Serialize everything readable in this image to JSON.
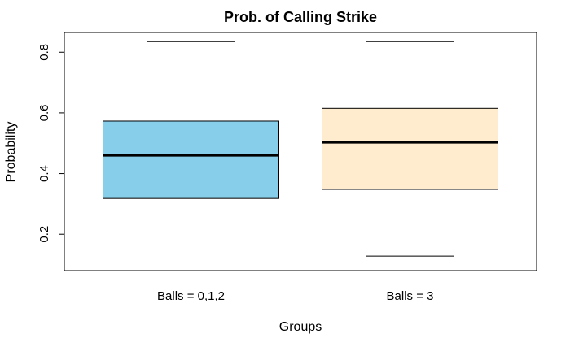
{
  "chart_data": {
    "type": "boxplot",
    "title": "Prob. of Calling Strike",
    "xlabel": "Groups",
    "ylabel": "Probability",
    "ylim": [
      0.08,
      0.865
    ],
    "yticks": [
      0.2,
      0.4,
      0.6,
      0.8
    ],
    "ytick_labels": [
      "0.2",
      "0.4",
      "0.6",
      "0.8"
    ],
    "categories": [
      "Balls = 0,1,2",
      "Balls = 3"
    ],
    "series": [
      {
        "min": 0.108,
        "q1": 0.318,
        "median": 0.46,
        "q3": 0.573,
        "max": 0.835,
        "color": "#87CEEB"
      },
      {
        "min": 0.128,
        "q1": 0.348,
        "median": 0.503,
        "q3": 0.615,
        "max": 0.835,
        "color": "#FFEBCD"
      }
    ],
    "grid": false
  }
}
